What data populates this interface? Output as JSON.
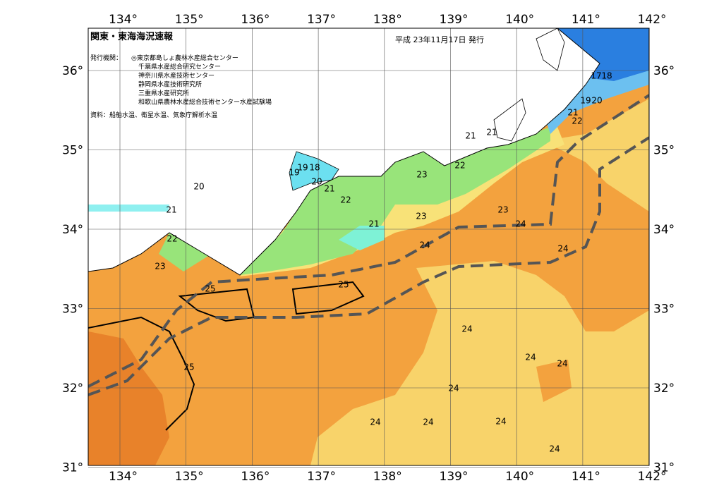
{
  "header": {
    "title": "関東・東海海況速報",
    "date": "平成 23年11月17日 発行",
    "issuer_label": "発行機関：",
    "issuers": [
      "◎東京都島しょ農林水産総合センター",
      "千葉県水産総合研究センター",
      "神奈川県水産技術センター",
      "静岡県水産技術研究所",
      "三重県水産研究所",
      "和歌山県農林水産総合技術センター水産試験場"
    ],
    "sources": "資料：船舶水温、衛星水温、気象庁解析水温"
  },
  "axes": {
    "lon_labels": [
      "134°",
      "135°",
      "136°",
      "137°",
      "138°",
      "139°",
      "140°",
      "141°",
      "142°"
    ],
    "lat_labels": [
      "36°",
      "35°",
      "34°",
      "33°",
      "32°",
      "31°"
    ]
  },
  "contour_labels": [
    "17",
    "18",
    "19",
    "20",
    "21",
    "22",
    "21",
    "21",
    "22",
    "23",
    "23",
    "24",
    "24",
    "23",
    "24",
    "24",
    "24",
    "24",
    "24",
    "24",
    "24",
    "24",
    "24",
    "19",
    "19",
    "18",
    "20",
    "21",
    "22",
    "21",
    "20",
    "21",
    "22",
    "23",
    "25",
    "25",
    "25"
  ]
}
